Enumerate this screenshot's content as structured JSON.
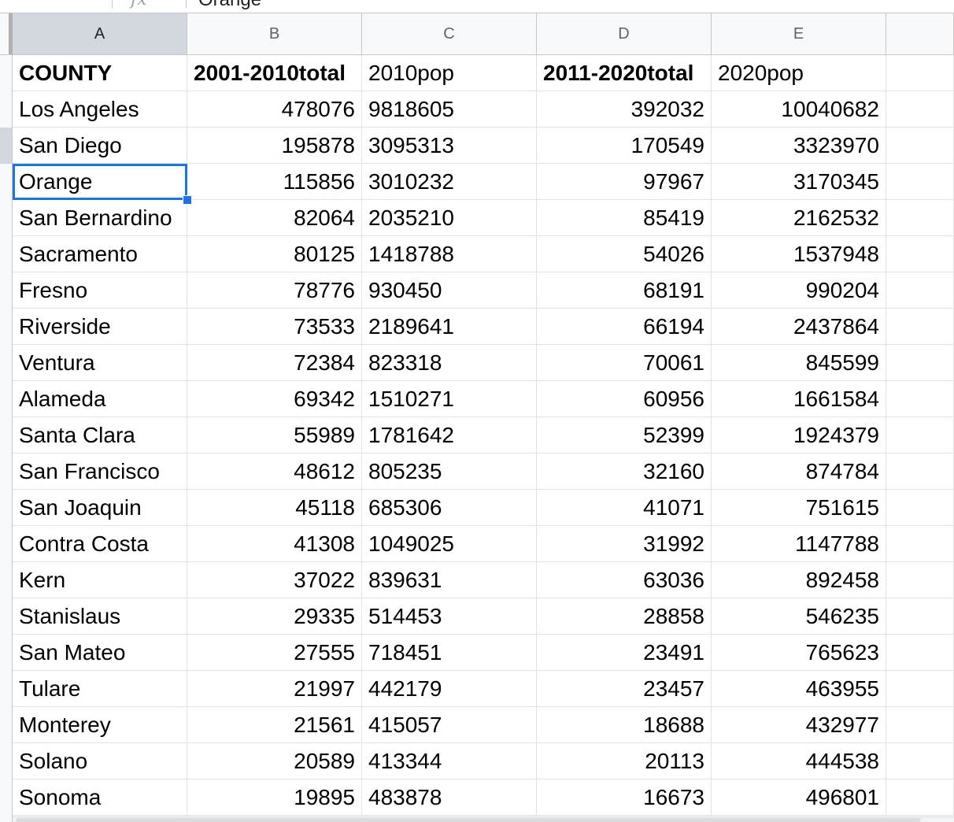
{
  "formula_bar": {
    "fx_icon": "fx-icon",
    "value": "Orange"
  },
  "columns": [
    {
      "letter": "A",
      "align": "left"
    },
    {
      "letter": "B",
      "align": "right"
    },
    {
      "letter": "C",
      "align": "left"
    },
    {
      "letter": "D",
      "align": "right"
    },
    {
      "letter": "E",
      "align": "right"
    }
  ],
  "selected_cell": {
    "row": 3,
    "col": 0
  },
  "header_row": [
    "COUNTY",
    "2001-2010total",
    "2010pop",
    "2011-2020total",
    "2020pop"
  ],
  "header_bold": [
    true,
    true,
    false,
    true,
    false
  ],
  "rows": [
    [
      "Los Angeles",
      "478076",
      "9818605",
      "392032",
      "10040682"
    ],
    [
      "San Diego",
      "195878",
      "3095313",
      "170549",
      "3323970"
    ],
    [
      "Orange",
      "115856",
      "3010232",
      "97967",
      "3170345"
    ],
    [
      "San Bernardino",
      "82064",
      "2035210",
      "85419",
      "2162532"
    ],
    [
      "Sacramento",
      "80125",
      "1418788",
      "54026",
      "1537948"
    ],
    [
      "Fresno",
      "78776",
      "930450",
      "68191",
      "990204"
    ],
    [
      "Riverside",
      "73533",
      "2189641",
      "66194",
      "2437864"
    ],
    [
      "Ventura",
      "72384",
      "823318",
      "70061",
      "845599"
    ],
    [
      "Alameda",
      "69342",
      "1510271",
      "60956",
      "1661584"
    ],
    [
      "Santa Clara",
      "55989",
      "1781642",
      "52399",
      "1924379"
    ],
    [
      "San Francisco",
      "48612",
      "805235",
      "32160",
      "874784"
    ],
    [
      "San Joaquin",
      "45118",
      "685306",
      "41071",
      "751615"
    ],
    [
      "Contra Costa",
      "41308",
      "1049025",
      "31992",
      "1147788"
    ],
    [
      "Kern",
      "37022",
      "839631",
      "63036",
      "892458"
    ],
    [
      "Stanislaus",
      "29335",
      "514453",
      "28858",
      "546235"
    ],
    [
      "San Mateo",
      "27555",
      "718451",
      "23491",
      "765623"
    ],
    [
      "Tulare",
      "21997",
      "442179",
      "23457",
      "463955"
    ],
    [
      "Monterey",
      "21561",
      "415057",
      "18688",
      "432977"
    ],
    [
      "Solano",
      "20589",
      "413344",
      "20113",
      "444538"
    ],
    [
      "Sonoma",
      "19895",
      "483878",
      "16673",
      "496801"
    ]
  ]
}
